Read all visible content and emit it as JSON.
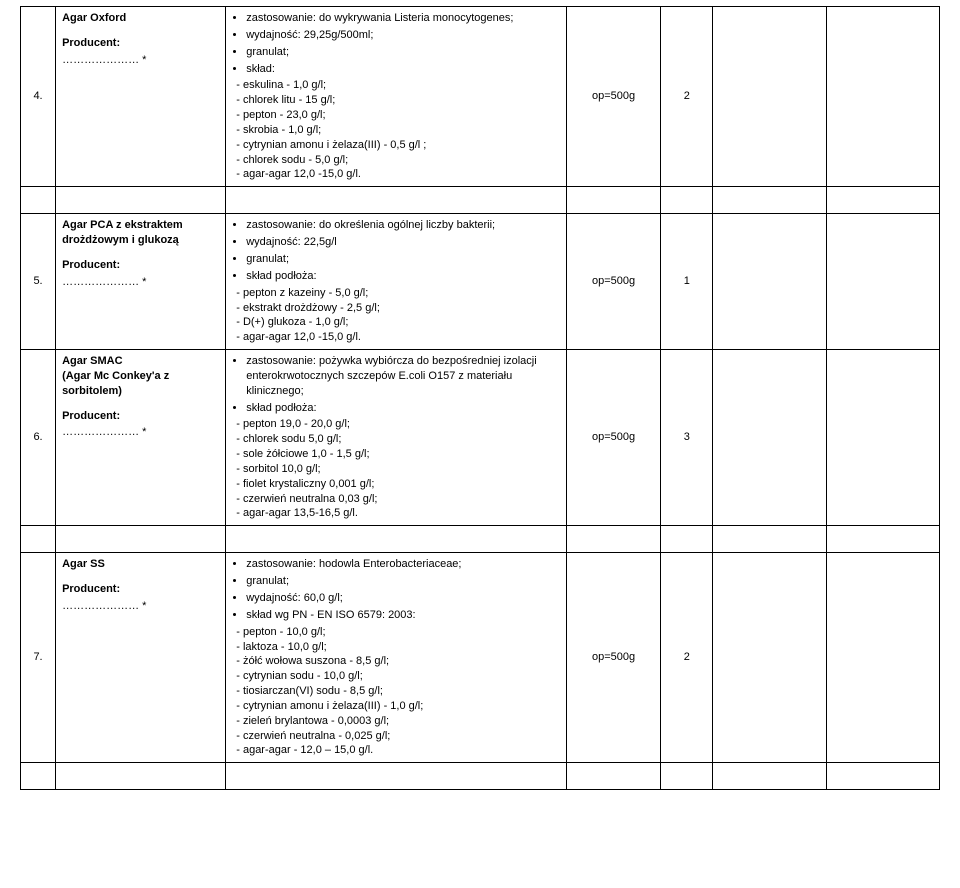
{
  "rows": [
    {
      "num": "4.",
      "name_title": "Agar Oxford",
      "name_prod_label": "Producent:",
      "name_dots": "………………… *",
      "spec_bullets": [
        "zastosowanie: do wykrywania Listeria monocytogenes;",
        "wydajność: 29,25g/500ml;",
        "granulat;",
        "skład:"
      ],
      "spec_sub": [
        "- eskulina - 1,0 g/l;",
        "- chlorek litu - 15 g/l;",
        "- pepton - 23,0 g/l;",
        "- skrobia - 1,0 g/l;",
        "- cytrynian amonu i żelaza(III) - 0,5 g/l ;",
        "- chlorek sodu - 5,0 g/l;",
        "- agar-agar 12,0 -15,0 g/l."
      ],
      "pack": "op=500g",
      "qty": "2"
    },
    {
      "num": "5.",
      "name_title": "Agar PCA z ekstraktem drożdżowym i glukozą",
      "name_prod_label": "Producent:",
      "name_dots": "………………… *",
      "spec_bullets": [
        "zastosowanie: do określenia ogólnej liczby bakterii;",
        "wydajność: 22,5g/l",
        "granulat;",
        "skład podłoża:"
      ],
      "spec_sub": [
        "- pepton z kazeiny - 5,0 g/l;",
        "- ekstrakt drożdżowy - 2,5 g/l;",
        "- D(+) glukoza - 1,0 g/l;",
        "- agar-agar 12,0 -15,0 g/l."
      ],
      "pack": "op=500g",
      "qty": "1"
    },
    {
      "num": "6.",
      "name_title": "Agar SMAC",
      "name_subtitle": "(Agar Mc Conkey'a z sorbitolem)",
      "name_prod_label": "Producent:",
      "name_dots": "………………… *",
      "spec_bullets": [
        "zastosowanie: pożywka wybiórcza do bezpośredniej izolacji enterokrwotocznych szczepów E.coli O157 z materiału klinicznego;",
        "skład podłoża:"
      ],
      "spec_sub": [
        "- pepton  19,0 - 20,0 g/l;",
        "- chlorek sodu  5,0 g/l;",
        "- sole żółciowe 1,0 - 1,5 g/l;",
        "- sorbitol 10,0 g/l;",
        "- fiolet krystaliczny 0,001 g/l;",
        "- czerwień neutralna 0,03 g/l;",
        "- agar-agar 13,5-16,5 g/l."
      ],
      "pack": "op=500g",
      "qty": "3"
    },
    {
      "num": "7.",
      "name_title": "Agar SS",
      "name_prod_label": "Producent:",
      "name_dots": "………………… *",
      "spec_bullets": [
        "zastosowanie: hodowla Enterobacteriaceae;",
        "granulat;",
        "wydajność: 60,0 g/l;",
        "skład wg PN - EN ISO 6579: 2003:"
      ],
      "spec_sub": [
        "- pepton - 10,0 g/l;",
        "- laktoza - 10,0 g/l;",
        "- żółć wołowa suszona - 8,5 g/l;",
        "- cytrynian sodu - 10,0 g/l;",
        "- tiosiarczan(VI) sodu - 8,5 g/l;",
        "- cytrynian amonu i żelaza(III) - 1,0 g/l;",
        "- zieleń brylantowa - 0,0003 g/l;",
        "- czerwień neutralna - 0,025 g/l;",
        "- agar-agar - 12,0 – 15,0 g/l."
      ],
      "pack": "op=500g",
      "qty": "2"
    }
  ]
}
